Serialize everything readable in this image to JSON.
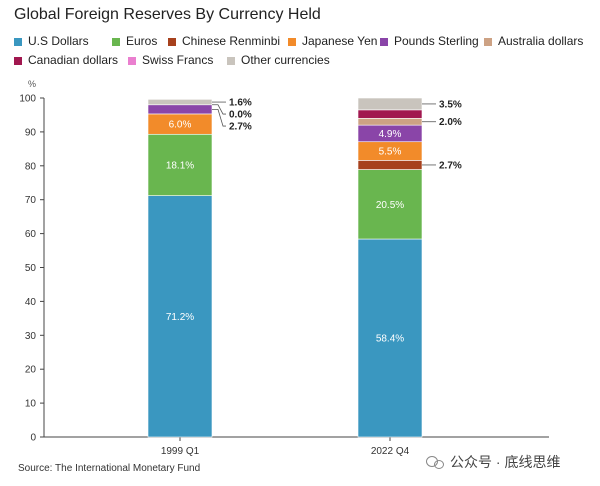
{
  "chart_data": {
    "type": "bar",
    "stacked": true,
    "title": "Global Foreign Reserves By Currency Held",
    "ylabel": "%",
    "ylim": [
      0,
      100
    ],
    "yticks": [
      0,
      10,
      20,
      30,
      40,
      50,
      60,
      70,
      80,
      90,
      100
    ],
    "grid": false,
    "legend_position": "top",
    "categories": [
      "1999 Q1",
      "2022 Q4"
    ],
    "series": [
      {
        "name": "U.S Dollars",
        "color": "#3a97c0",
        "values": [
          71.2,
          58.4
        ],
        "labels": [
          "71.2%",
          "58.4%"
        ]
      },
      {
        "name": "Euros",
        "color": "#69b64f",
        "values": [
          18.1,
          20.5
        ],
        "labels": [
          "18.1%",
          "20.5%"
        ]
      },
      {
        "name": "Chinese Renminbi",
        "color": "#a7411d",
        "values": [
          0,
          2.7
        ],
        "labels": [
          "",
          "2.7%"
        ]
      },
      {
        "name": "Japanese Yen",
        "color": "#f28b2a",
        "values": [
          6.0,
          5.5
        ],
        "labels": [
          "6.0%",
          "5.5%"
        ]
      },
      {
        "name": "Pounds Sterling",
        "color": "#8a45a8",
        "values": [
          2.7,
          4.9
        ],
        "labels": [
          "2.7%",
          "4.9%"
        ]
      },
      {
        "name": "Australia dollars",
        "color": "#cda284",
        "values": [
          0,
          2.0
        ],
        "labels": [
          "",
          "2.0%"
        ]
      },
      {
        "name": "Canadian dollars",
        "color": "#a1174f",
        "values": [
          0,
          2.5
        ],
        "labels": [
          "",
          ""
        ]
      },
      {
        "name": "Swiss Francs",
        "color": "#ea7fcf",
        "values": [
          0.0,
          0.0
        ],
        "labels": [
          "0.0%",
          ""
        ]
      },
      {
        "name": "Other currencies",
        "color": "#c9c4bd",
        "values": [
          1.6,
          3.5
        ],
        "labels": [
          "1.6%",
          "3.5%"
        ]
      }
    ]
  },
  "source": "Source: The International Monetary Fund",
  "watermark": "公众号 · 底线思维"
}
